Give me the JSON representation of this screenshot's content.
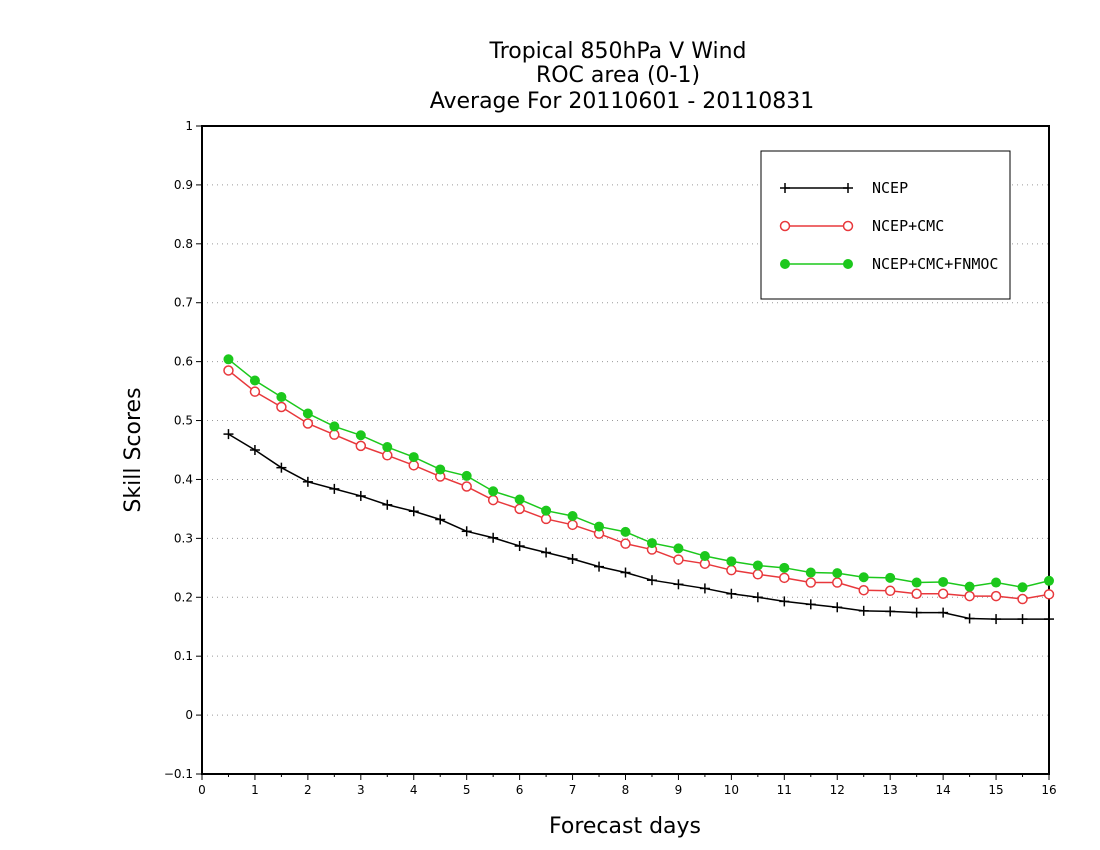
{
  "chart_data": {
    "type": "line",
    "title_lines": [
      "Tropical 850hPa V Wind",
      "ROC area (0-1)",
      "Average For 20110601 - 20110831"
    ],
    "xlabel": "Forecast days",
    "ylabel": "Skill Scores",
    "xlim": [
      0,
      16
    ],
    "ylim": [
      -0.1,
      1
    ],
    "x_ticks": [
      "0",
      "1",
      "2",
      "3",
      "4",
      "5",
      "6",
      "7",
      "8",
      "9",
      "10",
      "11",
      "12",
      "13",
      "14",
      "15",
      "16"
    ],
    "y_ticks": [
      "−0.1",
      "0",
      "0.1",
      "0.2",
      "0.3",
      "0.4",
      "0.5",
      "0.6",
      "0.7",
      "0.8",
      "0.9",
      "1"
    ],
    "grid": "dotted horizontal",
    "legend_position": "top-right",
    "x": [
      0.5,
      1,
      1.5,
      2,
      2.5,
      3,
      3.5,
      4,
      4.5,
      5,
      5.5,
      6,
      6.5,
      7,
      7.5,
      8,
      8.5,
      9,
      9.5,
      10,
      10.5,
      11,
      11.5,
      12,
      12.5,
      13,
      13.5,
      14,
      14.5,
      15,
      15.5,
      16
    ],
    "series": [
      {
        "name": "NCEP",
        "color": "#000000",
        "marker": "plus",
        "values": [
          0.477,
          0.45,
          0.42,
          0.396,
          0.384,
          0.372,
          0.357,
          0.346,
          0.332,
          0.312,
          0.301,
          0.287,
          0.276,
          0.265,
          0.252,
          0.242,
          0.229,
          0.222,
          0.215,
          0.206,
          0.2,
          0.193,
          0.188,
          0.183,
          0.177,
          0.176,
          0.174,
          0.174,
          0.164,
          0.163,
          0.163,
          0.163
        ]
      },
      {
        "name": "NCEP+CMC",
        "color": "#e8383c",
        "marker": "open-circle",
        "values": [
          0.585,
          0.549,
          0.523,
          0.495,
          0.476,
          0.457,
          0.441,
          0.424,
          0.405,
          0.388,
          0.365,
          0.35,
          0.333,
          0.323,
          0.308,
          0.291,
          0.281,
          0.264,
          0.257,
          0.246,
          0.239,
          0.233,
          0.225,
          0.225,
          0.212,
          0.211,
          0.206,
          0.206,
          0.202,
          0.202,
          0.197,
          0.205
        ]
      },
      {
        "name": "NCEP+CMC+FNMOC",
        "color": "#1cc81c",
        "marker": "filled-circle",
        "values": [
          0.604,
          0.568,
          0.54,
          0.512,
          0.49,
          0.475,
          0.455,
          0.438,
          0.417,
          0.406,
          0.38,
          0.366,
          0.347,
          0.338,
          0.32,
          0.311,
          0.292,
          0.283,
          0.27,
          0.261,
          0.254,
          0.25,
          0.242,
          0.241,
          0.234,
          0.233,
          0.225,
          0.226,
          0.218,
          0.225,
          0.217,
          0.228
        ]
      }
    ]
  }
}
